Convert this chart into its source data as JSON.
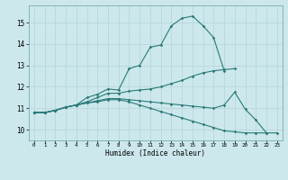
{
  "xlabel": "Humidex (Indice chaleur)",
  "background_color": "#cce8ec",
  "grid_color": "#b8d8dc",
  "line_color": "#2a7a78",
  "xlim": [
    -0.5,
    23.5
  ],
  "ylim": [
    9.5,
    15.8
  ],
  "xticks": [
    0,
    1,
    2,
    3,
    4,
    5,
    6,
    7,
    8,
    9,
    10,
    11,
    12,
    13,
    14,
    15,
    16,
    17,
    18,
    19,
    20,
    21,
    22,
    23
  ],
  "yticks": [
    10,
    11,
    12,
    13,
    14,
    15
  ],
  "line1_y": [
    10.8,
    10.8,
    10.9,
    11.05,
    11.15,
    11.5,
    11.65,
    11.9,
    11.85,
    12.85,
    13.0,
    13.85,
    13.95,
    14.85,
    15.2,
    15.3,
    14.85,
    14.3,
    12.75,
    null,
    null,
    null,
    null,
    null
  ],
  "line2_y": [
    10.8,
    10.8,
    10.9,
    11.05,
    11.15,
    11.3,
    11.5,
    11.7,
    11.7,
    11.8,
    11.85,
    11.9,
    12.0,
    12.15,
    12.3,
    12.5,
    12.65,
    12.75,
    12.8,
    12.85,
    null,
    null,
    null,
    null
  ],
  "line3_y": [
    10.8,
    10.8,
    10.9,
    11.05,
    11.15,
    11.25,
    11.35,
    11.45,
    11.45,
    11.4,
    11.35,
    11.3,
    11.25,
    11.2,
    11.15,
    11.1,
    11.05,
    11.0,
    11.15,
    11.75,
    10.95,
    10.45,
    9.85,
    null
  ],
  "line4_y": [
    10.8,
    10.8,
    10.9,
    11.05,
    11.15,
    11.25,
    11.3,
    11.4,
    11.4,
    11.3,
    11.15,
    11.0,
    10.85,
    10.7,
    10.55,
    10.4,
    10.25,
    10.1,
    9.95,
    9.9,
    9.85,
    9.85,
    9.85,
    9.85
  ]
}
